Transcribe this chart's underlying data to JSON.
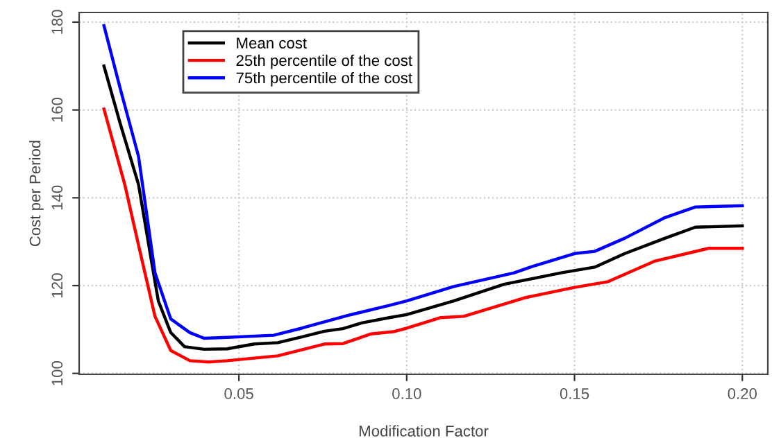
{
  "chart_data": {
    "type": "line",
    "xlabel": "Modification Factor",
    "ylabel": "Cost per Period",
    "xlim": [
      0.0024,
      0.2076
    ],
    "ylim": [
      99.8,
      182.2
    ],
    "xticks": [
      {
        "value": 0.05,
        "label": "0.05"
      },
      {
        "value": 0.1,
        "label": "0.10"
      },
      {
        "value": 0.15,
        "label": "0.15"
      },
      {
        "value": 0.2,
        "label": "0.20"
      }
    ],
    "yticks": [
      100,
      120,
      140,
      160,
      180
    ],
    "grid": true,
    "legend": "top left",
    "marker": "none",
    "line_style": "solid",
    "series": [
      {
        "name": "Mean cost",
        "color": "#000000",
        "x": [
          0.0098,
          0.0146,
          0.0201,
          0.0243,
          0.026,
          0.0297,
          0.0338,
          0.0396,
          0.0465,
          0.0546,
          0.0616,
          0.0687,
          0.0755,
          0.081,
          0.0866,
          0.0948,
          0.1,
          0.114,
          0.129,
          0.146,
          0.156,
          0.165,
          0.177,
          0.186,
          0.2
        ],
        "values": [
          170,
          157,
          143,
          124,
          116.5,
          109.3,
          106.1,
          105.5,
          105.6,
          106.7,
          107,
          108.3,
          109.6,
          110.2,
          111.5,
          112.7,
          113.4,
          116.5,
          120.3,
          122.9,
          124.2,
          127.3,
          130.8,
          133.3,
          133.6
        ]
      },
      {
        "name": "25th percentile of the cost",
        "color": "#ff0000",
        "x": [
          0.0098,
          0.016,
          0.0201,
          0.025,
          0.0297,
          0.0354,
          0.0409,
          0.0465,
          0.0616,
          0.0755,
          0.081,
          0.0894,
          0.096,
          0.1,
          0.11,
          0.117,
          0.135,
          0.15,
          0.16,
          0.174,
          0.19,
          0.2
        ],
        "values": [
          160.2,
          143,
          129.2,
          113,
          105.2,
          102.9,
          102.6,
          102.9,
          104,
          106.7,
          106.8,
          109,
          109.5,
          110.3,
          112.7,
          113,
          117.2,
          119.6,
          120.9,
          125.6,
          128.5,
          128.5
        ]
      },
      {
        "name": "75th percentile of the cost",
        "color": "#0000ff",
        "x": [
          0.0098,
          0.0146,
          0.0201,
          0.025,
          0.0297,
          0.0354,
          0.0396,
          0.0465,
          0.0604,
          0.0687,
          0.0824,
          0.0948,
          0.1,
          0.114,
          0.132,
          0.138,
          0.15,
          0.156,
          0.165,
          0.177,
          0.186,
          0.2
        ],
        "values": [
          179.2,
          165,
          149.4,
          122.9,
          112.4,
          109.3,
          108,
          108.2,
          108.7,
          110.3,
          113.2,
          115.5,
          116.5,
          119.8,
          122.9,
          124.5,
          127.3,
          127.8,
          130.8,
          135.5,
          137.9,
          138.2
        ]
      }
    ]
  }
}
